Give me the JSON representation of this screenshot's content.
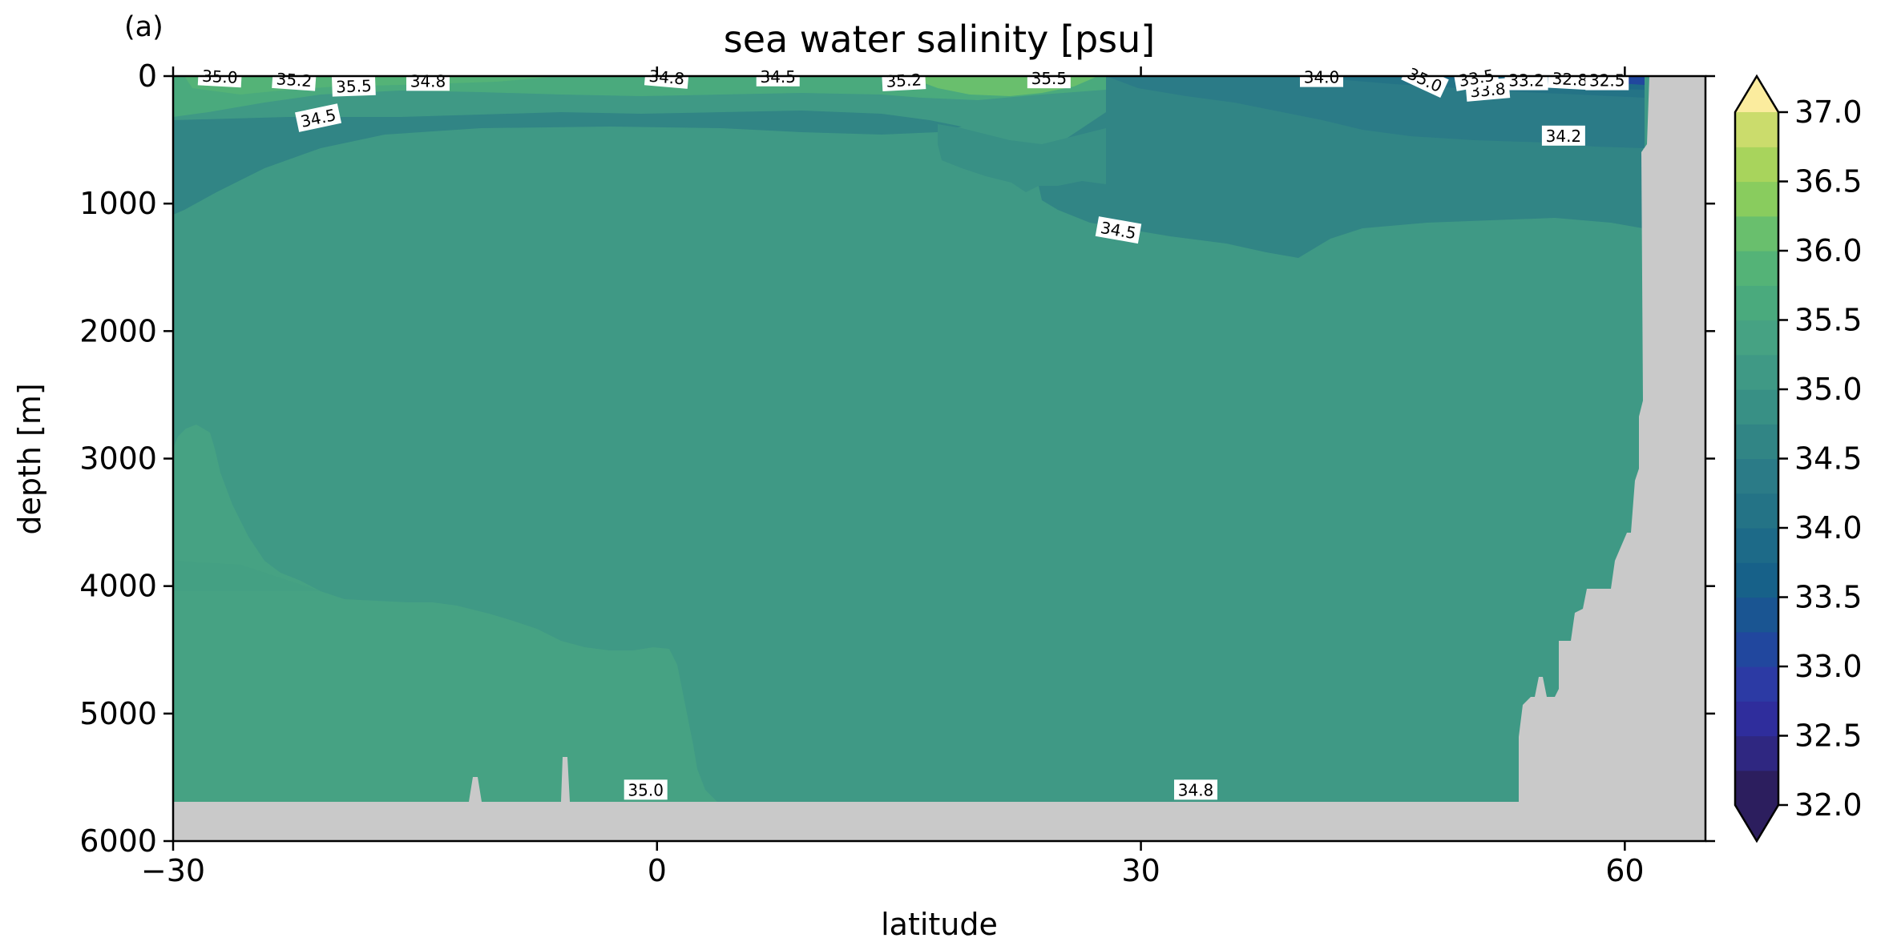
{
  "chart_data": {
    "type": "contourf",
    "panel_label": "(a)",
    "title": "sea water salinity [psu]",
    "xlabel": "latitude",
    "ylabel": "depth [m]",
    "xlim": [
      -30,
      65
    ],
    "ylim": [
      6000,
      0
    ],
    "x_ticks": [
      -30,
      0,
      30,
      60
    ],
    "x_tick_labels": [
      "−30",
      "0",
      "30",
      "60"
    ],
    "y_ticks": [
      0,
      1000,
      2000,
      3000,
      4000,
      5000,
      6000
    ],
    "y_tick_labels": [
      "0",
      "1000",
      "2000",
      "3000",
      "4000",
      "5000",
      "6000"
    ],
    "colorbar": {
      "min": 32.0,
      "max": 37.0,
      "extend": "both",
      "tick_values": [
        32.0,
        32.5,
        33.0,
        33.5,
        34.0,
        34.5,
        35.0,
        35.5,
        36.0,
        36.5,
        37.0
      ],
      "tick_labels": [
        "32.0",
        "32.5",
        "33.0",
        "33.5",
        "34.0",
        "34.5",
        "35.0",
        "35.5",
        "36.0",
        "36.5",
        "37.0"
      ],
      "levels": [
        32.0,
        32.25,
        32.5,
        32.75,
        33.0,
        33.25,
        33.5,
        33.75,
        34.0,
        34.25,
        34.5,
        34.75,
        35.0,
        35.25,
        35.5,
        35.75,
        36.0,
        36.25,
        36.5,
        36.75,
        37.0
      ],
      "colors": [
        "#2c1e5e",
        "#2f2781",
        "#2f2d9c",
        "#2c3aa4",
        "#21479e",
        "#1a5592",
        "#176189",
        "#1d6a88",
        "#247386",
        "#2b7b87",
        "#318585",
        "#389085",
        "#3f9985",
        "#46a283",
        "#4aaa7d",
        "#54b377",
        "#69bf6d",
        "#89cc5e",
        "#a8d45c",
        "#cbdc6c",
        "#e7e489",
        "#fbec9e"
      ],
      "under_color": "#2c1e5e",
      "over_color": "#fbec9e"
    },
    "land_color": "#c9c9c9",
    "contour_labels": [
      {
        "text": "35.0",
        "x": -27.1,
        "y": 5,
        "angle": 3
      },
      {
        "text": "35.2",
        "x": -22.5,
        "y": 30,
        "angle": 4
      },
      {
        "text": "35.5",
        "x": -18.8,
        "y": 80,
        "angle": -2
      },
      {
        "text": "34.8",
        "x": -14.2,
        "y": 40,
        "angle": 0
      },
      {
        "text": "34.5",
        "x": -21.0,
        "y": 330,
        "angle": -12
      },
      {
        "text": "34.8",
        "x": 0.6,
        "y": 10,
        "angle": 5
      },
      {
        "text": "34.5",
        "x": 7.5,
        "y": 5,
        "angle": 0
      },
      {
        "text": "35.2",
        "x": 15.3,
        "y": 35,
        "angle": -3
      },
      {
        "text": "35.5",
        "x": 24.3,
        "y": 20,
        "angle": 0
      },
      {
        "text": "34.0",
        "x": 41.2,
        "y": 10,
        "angle": 0
      },
      {
        "text": "34.5",
        "x": 28.6,
        "y": 1210,
        "angle": 10
      },
      {
        "text": "35.0",
        "x": 47.6,
        "y": 30,
        "angle": 25
      },
      {
        "text": "33.8",
        "x": 51.5,
        "y": 110,
        "angle": -5
      },
      {
        "text": "33.5",
        "x": 50.8,
        "y": 15,
        "angle": -10
      },
      {
        "text": "33.2",
        "x": 53.9,
        "y": 35,
        "angle": 0
      },
      {
        "text": "32.8",
        "x": 56.6,
        "y": 25,
        "angle": 3
      },
      {
        "text": "32.5",
        "x": 58.9,
        "y": 35,
        "angle": 0
      },
      {
        "text": "34.2",
        "x": 56.2,
        "y": 470,
        "angle": 0
      },
      {
        "text": "35.0",
        "x": -0.7,
        "y": 5600,
        "angle": 0
      },
      {
        "text": "34.8",
        "x": 33.4,
        "y": 5600,
        "angle": 0
      }
    ]
  }
}
